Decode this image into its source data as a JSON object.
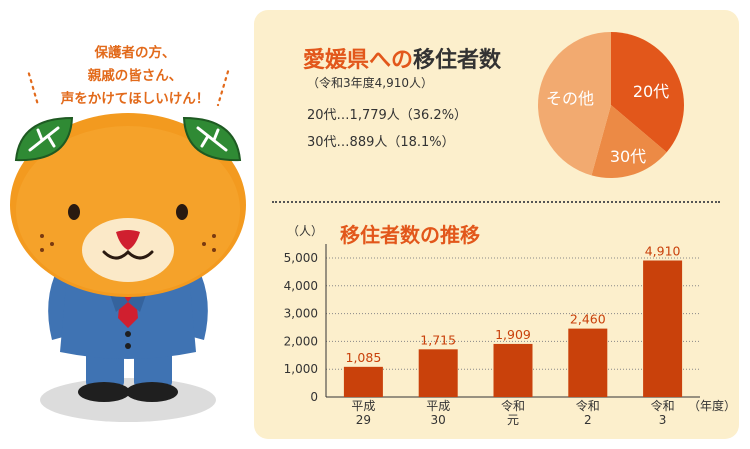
{
  "speech": {
    "lines": [
      "保護者の方、",
      "親戚の皆さん、",
      "声をかけてほしいけん！"
    ]
  },
  "top": {
    "title_part1": "愛媛県への",
    "title_part2": "移住者数",
    "subtitle": "（令和3年度4,910人）",
    "stat1": "20代…1,779人（36.2%）",
    "stat2": "30代…889人（18.1%）"
  },
  "pie": {
    "slices": [
      {
        "label": "20代",
        "percent": 36.2,
        "color": "#e2571b"
      },
      {
        "label": "30代",
        "percent": 18.1,
        "color": "#ec8a45"
      },
      {
        "label": "その他",
        "percent": 45.7,
        "color": "#f2aa70"
      }
    ]
  },
  "chart_data": {
    "type": "bar",
    "title": "移住者数の推移",
    "ylabel": "（人）",
    "xlabel": "（年度）",
    "categories": [
      [
        "平成",
        "29"
      ],
      [
        "平成",
        "30"
      ],
      [
        "令和",
        "元"
      ],
      [
        "令和",
        "2"
      ],
      [
        "令和",
        "3"
      ]
    ],
    "values": [
      1085,
      1715,
      1909,
      2460,
      4910
    ],
    "value_labels": [
      "1,085",
      "1,715",
      "1,909",
      "2,460",
      "4,910"
    ],
    "y_ticks": [
      "0",
      "1,000",
      "2,000",
      "3,000",
      "4,000",
      "5,000"
    ],
    "ylim": [
      0,
      5000
    ],
    "bar_color": "#c9410b",
    "label_color": "#c9410b",
    "grid": true
  }
}
